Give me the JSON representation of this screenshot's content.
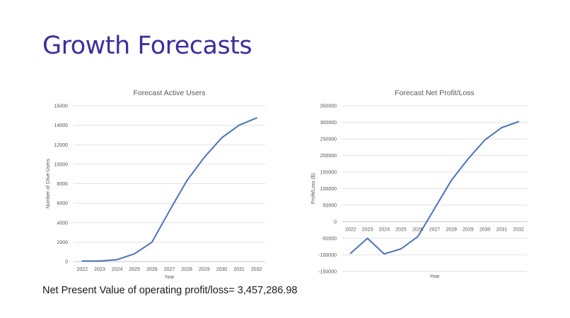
{
  "slide": {
    "title": "Growth Forecasts",
    "npv_text": "Net Present Value of operating profit/loss= 3,457,286.98"
  },
  "colors": {
    "title": "#3d2e9e",
    "line": "#4a72b8",
    "grid": "#d9d9d9",
    "axis_text": "#595959"
  },
  "chart_data": [
    {
      "type": "line",
      "title": "Forecast Active Users",
      "xlabel": "Year",
      "ylabel": "Number of Ctive Users",
      "categories": [
        "2022",
        "2023",
        "2024",
        "2025",
        "2026",
        "2027",
        "2028",
        "2029",
        "2030",
        "2031",
        "2032"
      ],
      "series": [
        {
          "name": "Active Users",
          "values": [
            50,
            60,
            200,
            800,
            2000,
            5200,
            8300,
            10700,
            12700,
            14000,
            14750
          ]
        }
      ],
      "ylim": [
        0,
        16000
      ],
      "yticks": [
        0,
        2000,
        4000,
        6000,
        8000,
        10000,
        12000,
        14000,
        16000
      ],
      "ytick_labels": [
        "0",
        "2000",
        "4000",
        "6000",
        "8000",
        "10000",
        "12000",
        "14000",
        "16000"
      ],
      "grid": true
    },
    {
      "type": "line",
      "title": "Forecast Net Profit/Loss",
      "xlabel": "Year",
      "ylabel": "Profit/Loss ($)",
      "categories": [
        "2022",
        "2023",
        "2024",
        "2025",
        "2026",
        "2027",
        "2028",
        "2029",
        "2030",
        "2031",
        "2032"
      ],
      "series": [
        {
          "name": "Net Profit/Loss",
          "values": [
            -95000,
            -50000,
            -97000,
            -82000,
            -45000,
            40000,
            125000,
            190000,
            247000,
            284000,
            302000
          ]
        }
      ],
      "ylim": [
        -150000,
        350000
      ],
      "yticks": [
        -150000,
        -100000,
        -50000,
        0,
        50000,
        100000,
        150000,
        200000,
        250000,
        300000,
        350000
      ],
      "ytick_labels": [
        "-150000",
        "-100000",
        "-50000",
        "0",
        "50000",
        "100000",
        "150000",
        "200000",
        "250000",
        "300000",
        "350000"
      ],
      "grid": true
    }
  ]
}
